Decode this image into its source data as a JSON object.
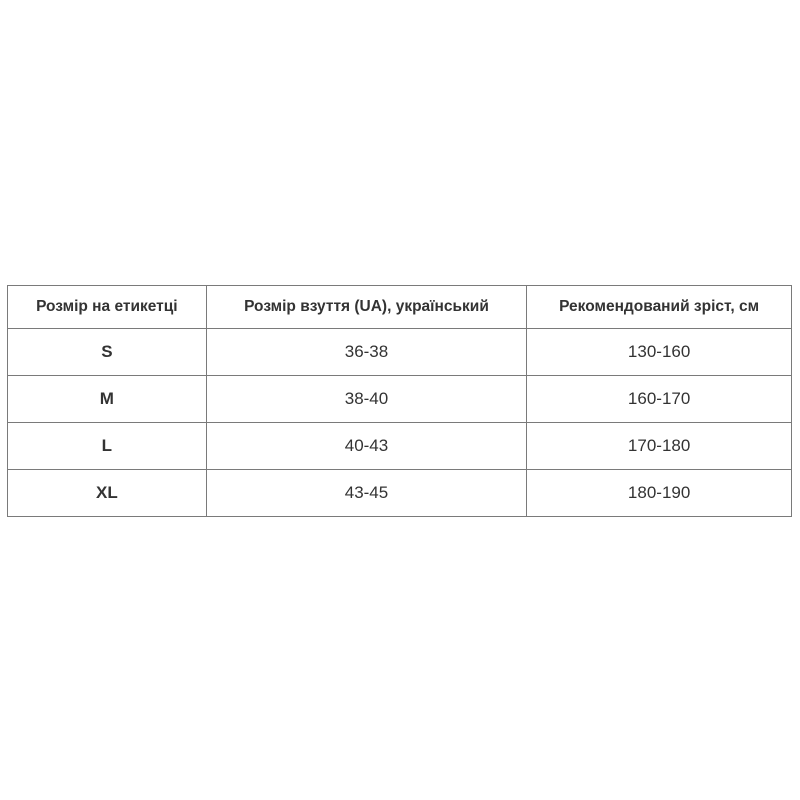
{
  "table": {
    "headers": [
      "Розмір на етикетці",
      "Розмір взуття (UA), український",
      "Рекомендований зріст, см"
    ],
    "rows": [
      [
        "S",
        "36-38",
        "130-160"
      ],
      [
        "M",
        "38-40",
        "160-170"
      ],
      [
        "L",
        "40-43",
        "170-180"
      ],
      [
        "XL",
        "43-45",
        "180-190"
      ]
    ]
  }
}
